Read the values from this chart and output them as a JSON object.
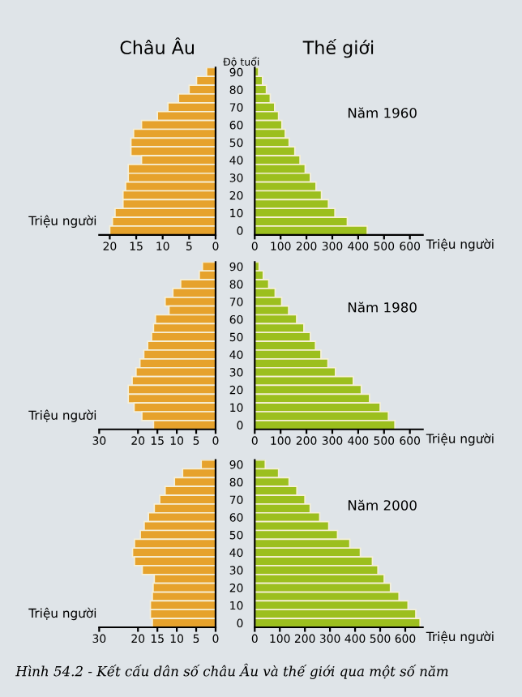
{
  "chart_data": [
    {
      "type": "bar",
      "orientation": "horizontal",
      "title": "Châu Âu",
      "xlabel": "Triệu người",
      "tick_labels": "x",
      "categories": [
        "90",
        null,
        "80",
        null,
        "70",
        null,
        "60",
        null,
        "50",
        null,
        "40",
        null,
        "30",
        null,
        "20",
        null,
        "10",
        null,
        "0"
      ],
      "color": "#e6a22c",
      "xlim": [
        22,
        0
      ],
      "xticks": [
        20,
        15,
        10,
        5,
        0
      ],
      "values": [
        1.7,
        3.6,
        5,
        7,
        9,
        11,
        14,
        15.5,
        16,
        16,
        14,
        16.5,
        16.5,
        17,
        17.5,
        17.5,
        19,
        19.5,
        20
      ]
    },
    {
      "type": "bar",
      "orientation": "horizontal",
      "title": "Thế giới",
      "ylabel": "Độ tuổi",
      "xlabel": "Triệu người",
      "annotations": [
        "Năm 1960"
      ],
      "categories": [
        "90",
        null,
        "80",
        null,
        "70",
        null,
        "60",
        null,
        "50",
        null,
        "40",
        null,
        "30",
        null,
        "20",
        null,
        "10",
        null,
        "0"
      ],
      "color": "#9cbf1e",
      "xlim": [
        0,
        650
      ],
      "xticks": [
        0,
        100,
        200,
        300,
        400,
        500,
        600
      ],
      "values": [
        15,
        30,
        45,
        60,
        77,
        92,
        105,
        118,
        133,
        155,
        175,
        195,
        215,
        237,
        258,
        285,
        310,
        358,
        435
      ]
    },
    {
      "type": "bar",
      "orientation": "horizontal",
      "xlabel": "Triệu người",
      "tick_labels": "x",
      "categories": [
        "90",
        null,
        "80",
        null,
        "70",
        null,
        "60",
        null,
        "50",
        null,
        "40",
        null,
        "30",
        null,
        "20",
        null,
        "10",
        null,
        "0"
      ],
      "color": "#e6a22c",
      "xlim": [
        30,
        0
      ],
      "xticks": [
        30,
        20,
        15,
        10,
        5,
        0
      ],
      "values": [
        3.4,
        4.2,
        9,
        11,
        13,
        12,
        15.5,
        16,
        16.5,
        17.5,
        18.5,
        19.5,
        20.5,
        21.5,
        22.5,
        22.5,
        21,
        19,
        16
      ]
    },
    {
      "type": "bar",
      "orientation": "horizontal",
      "xlabel": "Triệu người",
      "annotations": [
        "Năm 1980"
      ],
      "categories": [
        "90",
        null,
        "80",
        null,
        "70",
        null,
        "60",
        null,
        "50",
        null,
        "40",
        null,
        "30",
        null,
        "20",
        null,
        "10",
        null,
        "0"
      ],
      "color": "#9cbf1e",
      "xlim": [
        0,
        650
      ],
      "xticks": [
        0,
        100,
        200,
        300,
        400,
        500,
        600
      ],
      "values": [
        17,
        33,
        54,
        79,
        104,
        131,
        162,
        190,
        215,
        235,
        256,
        283,
        312,
        381,
        412,
        444,
        485,
        517,
        542
      ]
    },
    {
      "type": "bar",
      "orientation": "horizontal",
      "xlabel": "Triệu người",
      "tick_labels": "x",
      "categories": [
        "90",
        null,
        "80",
        null,
        "70",
        null,
        "60",
        null,
        "50",
        null,
        "40",
        null,
        "30",
        null,
        "20",
        null,
        "10",
        null,
        "0"
      ],
      "color": "#e6a22c",
      "xlim": [
        30,
        0
      ],
      "xticks": [
        30,
        20,
        15,
        10,
        5,
        0
      ],
      "values": [
        3.7,
        8.5,
        10.6,
        13,
        14.4,
        15.8,
        17.3,
        18.4,
        19.4,
        20.9,
        21.4,
        20.9,
        18.9,
        15.8,
        16.1,
        16.3,
        16.8,
        16.8,
        16.3
      ]
    },
    {
      "type": "bar",
      "orientation": "horizontal",
      "xlabel": "Triệu người",
      "annotations": [
        "Năm 2000",
        "Hình 54.2 - Kết cấu dân số châu Âu và thế giới qua một số năm"
      ],
      "categories": [
        "90",
        null,
        "80",
        null,
        "70",
        null,
        "60",
        null,
        "50",
        null,
        "40",
        null,
        "30",
        null,
        "20",
        null,
        "10",
        null,
        "0"
      ],
      "color": "#9cbf1e",
      "xlim": [
        0,
        670
      ],
      "xticks": [
        0,
        100,
        200,
        300,
        400,
        500,
        600
      ],
      "values": [
        42,
        95,
        137,
        168,
        200,
        221,
        259,
        295,
        330,
        379,
        421,
        469,
        491,
        516,
        541,
        575,
        611,
        642,
        659
      ]
    }
  ]
}
